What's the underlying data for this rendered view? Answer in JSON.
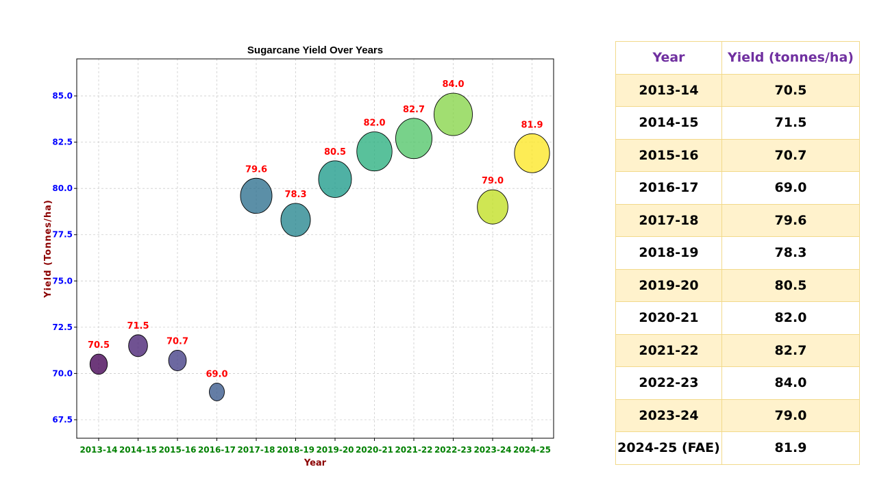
{
  "colors": {
    "title": "#000000",
    "x_label": "#8b0000",
    "y_label": "#8b0000",
    "x_ticks": "#008000",
    "y_ticks": "#0000ff",
    "data_labels": "#ff0000",
    "table_header": "#7030a0",
    "table_border": "#f2d98a",
    "table_stripe": "#fff2cc"
  },
  "chart_data": {
    "type": "scatter",
    "title": "Sugarcane Yield Over Years",
    "xlabel": "Year",
    "ylabel": "Yield (Tonnes/ha)",
    "categories": [
      "2013-14",
      "2014-15",
      "2015-16",
      "2016-17",
      "2017-18",
      "2018-19",
      "2019-20",
      "2020-21",
      "2021-22",
      "2022-23",
      "2023-24",
      "2024-25"
    ],
    "values": [
      70.5,
      71.5,
      70.7,
      69.0,
      79.6,
      78.3,
      80.5,
      82.0,
      82.7,
      84.0,
      79.0,
      81.9
    ],
    "data_labels": [
      "70.5",
      "71.5",
      "70.7",
      "69.0",
      "79.6",
      "78.3",
      "80.5",
      "82.0",
      "82.7",
      "84.0",
      "79.0",
      "81.9"
    ],
    "ylim": [
      66.5,
      87.0
    ],
    "yticks": [
      67.5,
      70.0,
      72.5,
      75.0,
      77.5,
      80.0,
      82.5,
      85.0
    ],
    "ytick_labels": [
      "67.5",
      "70.0",
      "72.5",
      "75.0",
      "77.5",
      "80.0",
      "82.5",
      "85.0"
    ],
    "grid": true,
    "colormap": [
      "#440154",
      "#482173",
      "#433e85",
      "#38598c",
      "#2d708e",
      "#25858e",
      "#1e9b8a",
      "#2ab07f",
      "#52c569",
      "#86d549",
      "#c2df23",
      "#fde725"
    ]
  },
  "table": {
    "headers": [
      "Year",
      "Yield (tonnes/ha)"
    ],
    "rows": [
      [
        "2013-14",
        "70.5"
      ],
      [
        "2014-15",
        "71.5"
      ],
      [
        "2015-16",
        "70.7"
      ],
      [
        "2016-17",
        "69.0"
      ],
      [
        "2017-18",
        "79.6"
      ],
      [
        "2018-19",
        "78.3"
      ],
      [
        "2019-20",
        "80.5"
      ],
      [
        "2020-21",
        "82.0"
      ],
      [
        "2021-22",
        "82.7"
      ],
      [
        "2022-23",
        "84.0"
      ],
      [
        "2023-24",
        "79.0"
      ],
      [
        "2024-25 (FAE)",
        "81.9"
      ]
    ]
  }
}
